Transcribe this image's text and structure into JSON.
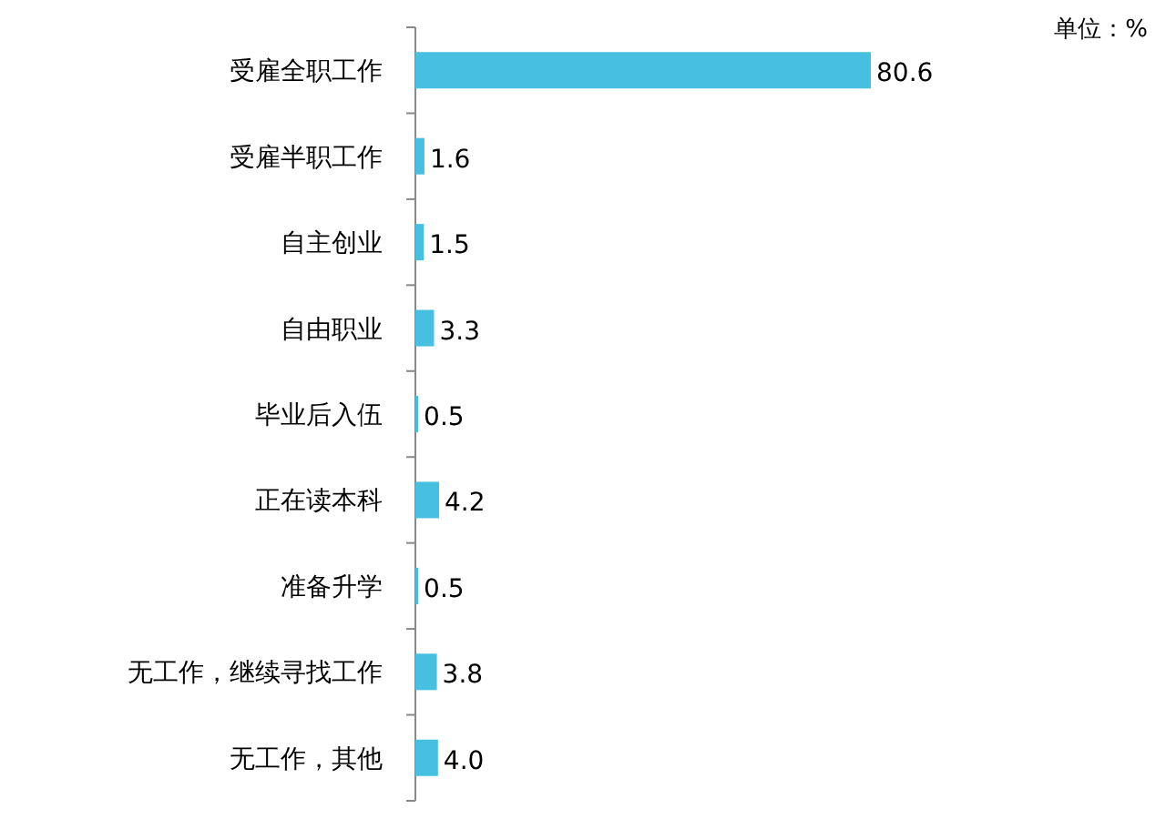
{
  "chart_data": {
    "type": "bar",
    "orientation": "horizontal",
    "categories": [
      "受雇全职工作",
      "受雇半职工作",
      "自主创业",
      "自由职业",
      "毕业后入伍",
      "正在读本科",
      "准备升学",
      "无工作，继续寻找工作",
      "无工作，其他"
    ],
    "values": [
      80.6,
      1.6,
      1.5,
      3.3,
      0.5,
      4.2,
      0.5,
      3.8,
      4.0
    ],
    "value_labels": [
      "80.6",
      "1.6",
      "1.5",
      "3.3",
      "0.5",
      "4.2",
      "0.5",
      "3.8",
      "4.0"
    ],
    "color": "#46bfe0",
    "annotations": [
      "单位：%"
    ]
  }
}
